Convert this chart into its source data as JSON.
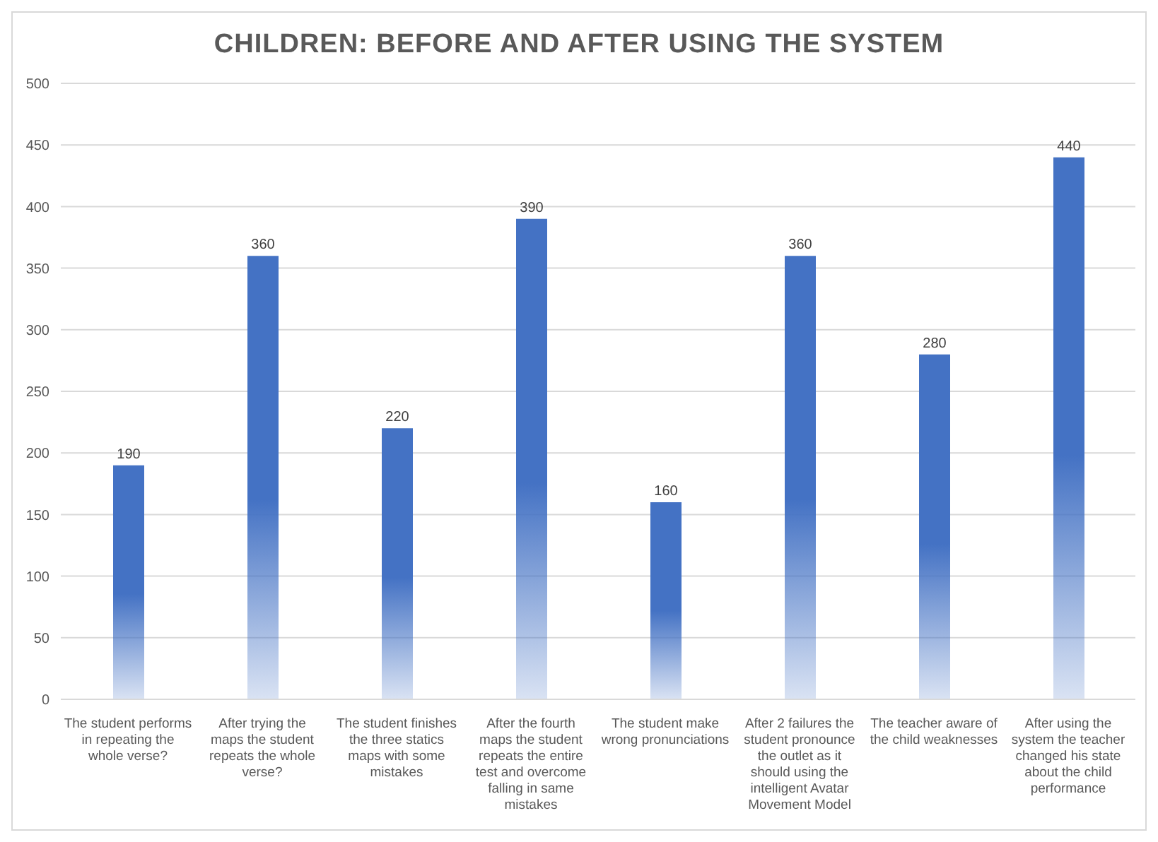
{
  "chart_data": {
    "type": "bar",
    "title": "CHILDREN: BEFORE AND AFTER USING THE SYSTEM",
    "categories": [
      "The student performs in repeating the whole verse?",
      "After trying the maps the student repeats the whole verse?",
      "The student finishes the three statics maps with some mistakes",
      "After the fourth maps  the student repeats the entire test and overcome falling in same mistakes",
      "The student make wrong pronunciations",
      "After 2 failures  the student pronounce the outlet as it should using the intelligent Avatar Movement Model",
      "The teacher aware of the child weaknesses",
      "After using the system  the teacher changed his state about the child performance"
    ],
    "values": [
      190,
      360,
      220,
      390,
      160,
      360,
      280,
      440
    ],
    "color": "#4472c4",
    "ylim": [
      0,
      500
    ],
    "yticks": [
      0,
      50,
      100,
      150,
      200,
      250,
      300,
      350,
      400,
      450,
      500
    ],
    "grid": "y",
    "data_labels": true
  }
}
